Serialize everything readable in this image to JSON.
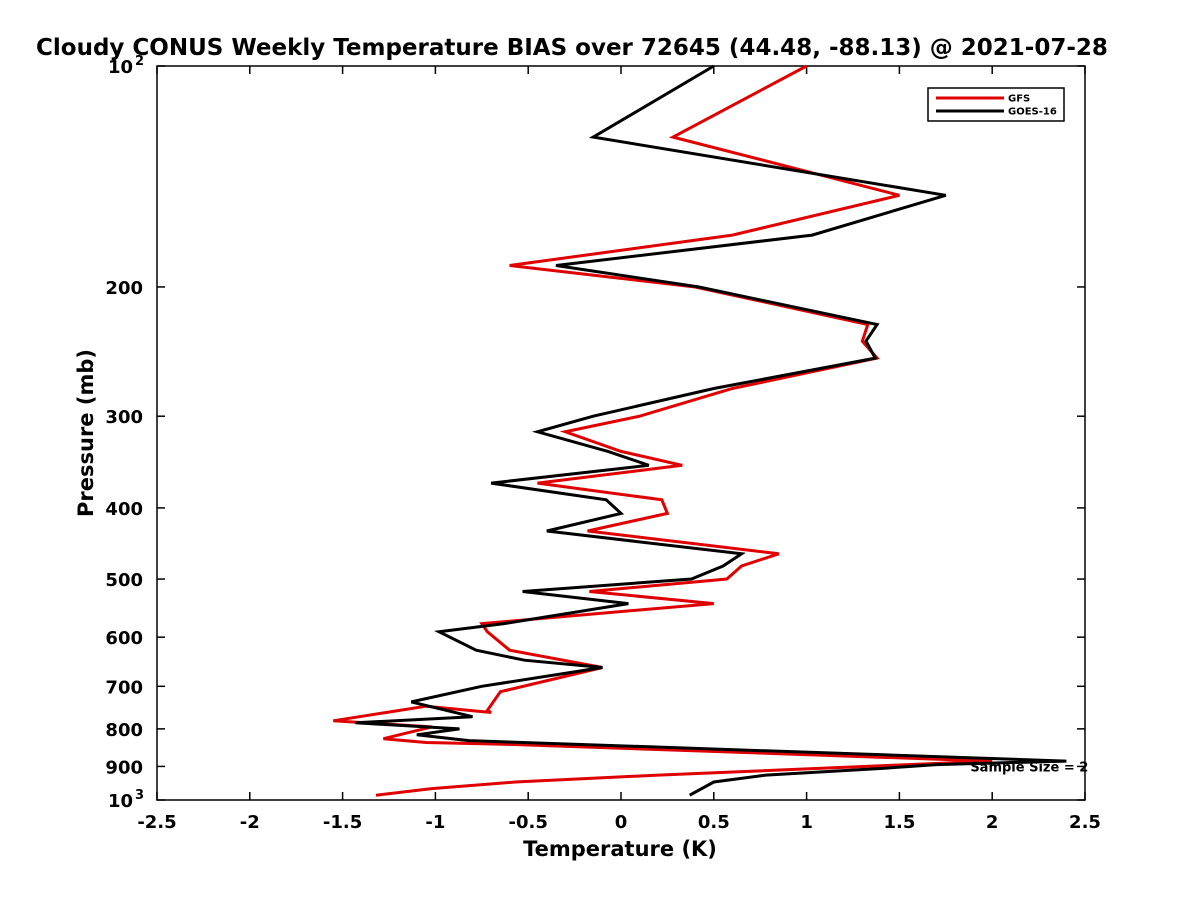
{
  "chart_data": {
    "type": "line",
    "title": "Cloudy CONUS Weekly Temperature BIAS over 72645 (44.48, -88.13) @ 2021-07-28",
    "xlabel": "Temperature (K)",
    "ylabel": "Pressure (mb)",
    "xlim": [
      -2.5,
      2.5
    ],
    "ylim": [
      100,
      1000
    ],
    "y_scale": "log",
    "y_reversed": true,
    "grid": false,
    "legend_position": "top-right",
    "x_ticks": [
      "-2.5",
      "-2",
      "-1.5",
      "-1",
      "-0.5",
      "0",
      "0.5",
      "1",
      "1.5",
      "2",
      "2.5"
    ],
    "y_ticks": [
      {
        "value": 100,
        "label": "10",
        "sup": "2"
      },
      {
        "value": 200,
        "label": "200"
      },
      {
        "value": 300,
        "label": "300"
      },
      {
        "value": 400,
        "label": "400"
      },
      {
        "value": 500,
        "label": "500"
      },
      {
        "value": 600,
        "label": "600"
      },
      {
        "value": 700,
        "label": "700"
      },
      {
        "value": 800,
        "label": "800"
      },
      {
        "value": 900,
        "label": "900"
      },
      {
        "value": 1000,
        "label": "10",
        "sup": "3"
      }
    ],
    "series": [
      {
        "name": "GFS",
        "color": "#e00000",
        "points": [
          [
            1.0,
            100
          ],
          [
            0.28,
            125
          ],
          [
            1.5,
            150
          ],
          [
            0.6,
            170
          ],
          [
            -0.6,
            187
          ],
          [
            0.4,
            200
          ],
          [
            1.33,
            225
          ],
          [
            1.3,
            237
          ],
          [
            1.38,
            250
          ],
          [
            0.6,
            275
          ],
          [
            0.1,
            300
          ],
          [
            -0.3,
            315
          ],
          [
            0.0,
            335
          ],
          [
            0.33,
            350
          ],
          [
            -0.45,
            370
          ],
          [
            0.22,
            390
          ],
          [
            0.25,
            407
          ],
          [
            -0.18,
            430
          ],
          [
            0.85,
            462
          ],
          [
            0.65,
            480
          ],
          [
            0.57,
            500
          ],
          [
            -0.17,
            520
          ],
          [
            0.5,
            540
          ],
          [
            -0.75,
            575
          ],
          [
            -0.72,
            590
          ],
          [
            -0.6,
            625
          ],
          [
            -0.1,
            660
          ],
          [
            -0.65,
            712
          ],
          [
            -0.72,
            755
          ],
          [
            -0.7,
            760
          ],
          [
            -1.05,
            745
          ],
          [
            -1.55,
            780
          ],
          [
            -1.02,
            795
          ],
          [
            -1.28,
            825
          ],
          [
            -1.05,
            835
          ],
          [
            -0.6,
            840
          ],
          [
            2.0,
            885
          ],
          [
            1.55,
            895
          ],
          [
            0.2,
            925
          ],
          [
            -0.57,
            945
          ],
          [
            -1.02,
            965
          ],
          [
            -1.32,
            985
          ]
        ]
      },
      {
        "name": "GOES-16",
        "color": "#000000",
        "points": [
          [
            0.5,
            100
          ],
          [
            -0.15,
            125
          ],
          [
            1.75,
            150
          ],
          [
            1.03,
            170
          ],
          [
            -0.35,
            187
          ],
          [
            0.42,
            200
          ],
          [
            1.38,
            225
          ],
          [
            1.32,
            237
          ],
          [
            1.37,
            250
          ],
          [
            0.5,
            275
          ],
          [
            -0.15,
            300
          ],
          [
            -0.45,
            315
          ],
          [
            -0.07,
            335
          ],
          [
            0.15,
            350
          ],
          [
            -0.7,
            370
          ],
          [
            -0.08,
            390
          ],
          [
            0.0,
            407
          ],
          [
            -0.4,
            430
          ],
          [
            0.65,
            462
          ],
          [
            0.55,
            480
          ],
          [
            0.38,
            500
          ],
          [
            -0.53,
            520
          ],
          [
            0.04,
            540
          ],
          [
            -0.63,
            575
          ],
          [
            -0.98,
            590
          ],
          [
            -0.78,
            625
          ],
          [
            -0.52,
            645
          ],
          [
            -0.1,
            660
          ],
          [
            -0.75,
            700
          ],
          [
            -1.13,
            735
          ],
          [
            -0.8,
            770
          ],
          [
            -1.43,
            785
          ],
          [
            -0.87,
            800
          ],
          [
            -1.1,
            815
          ],
          [
            -0.82,
            830
          ],
          [
            2.4,
            885
          ],
          [
            1.7,
            895
          ],
          [
            1.42,
            905
          ],
          [
            0.78,
            925
          ],
          [
            0.5,
            945
          ],
          [
            0.37,
            985
          ]
        ]
      }
    ],
    "legend": [
      {
        "name": "GFS",
        "color": "#e00000"
      },
      {
        "name": "GOES-16",
        "color": "#000000"
      }
    ],
    "annotations": [
      {
        "text": "Sample Size = 2",
        "x": 2.2,
        "y": 900
      }
    ]
  }
}
